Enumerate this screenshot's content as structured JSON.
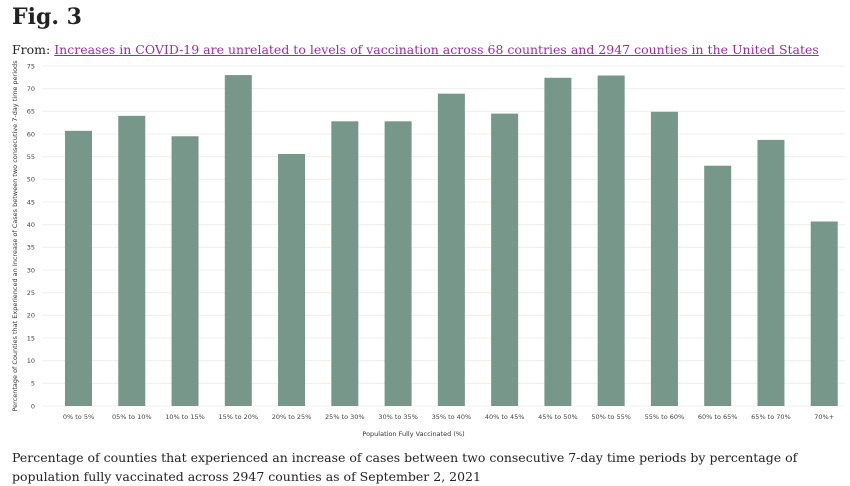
{
  "header": {
    "title": "Fig. 3",
    "from_label": "From:",
    "article_link": "Increases in COVID-19 are unrelated to levels of vaccination across 68 countries and 2947 counties in the United States"
  },
  "caption": "Percentage of counties that experienced an increase of cases between two consecutive 7-day time periods by percentage of population fully vaccinated across 2947 counties as of September 2, 2021",
  "colors": {
    "bar": "#76978a",
    "grid": "#ececec",
    "link": "#9b2aa8"
  },
  "chart_data": {
    "type": "bar",
    "categories": [
      "0% to 5%",
      "05% to 10%",
      "10% to 15%",
      "15% to 20%",
      "20% to 25%",
      "25% to 30%",
      "30% to 35%",
      "35% to 40%",
      "40% to 45%",
      "45% to 50%",
      "50% to 55%",
      "55% to 60%",
      "60% to 65%",
      "65% to 70%",
      "70%+"
    ],
    "values": [
      60.7,
      64.0,
      59.5,
      73.0,
      55.6,
      62.8,
      62.8,
      68.9,
      64.5,
      72.4,
      72.9,
      64.9,
      53.0,
      58.7,
      40.7
    ],
    "xlabel": "Population Fully Vaccinated (%)",
    "ylabel": "Percentage of Counties that Experienced an Increase of Cases between two consecutive 7-day time periods",
    "ylim": [
      0,
      75
    ],
    "yticks": [
      0,
      5,
      10,
      15,
      20,
      25,
      30,
      35,
      40,
      45,
      50,
      55,
      60,
      65,
      70,
      75
    ],
    "grid": true
  }
}
